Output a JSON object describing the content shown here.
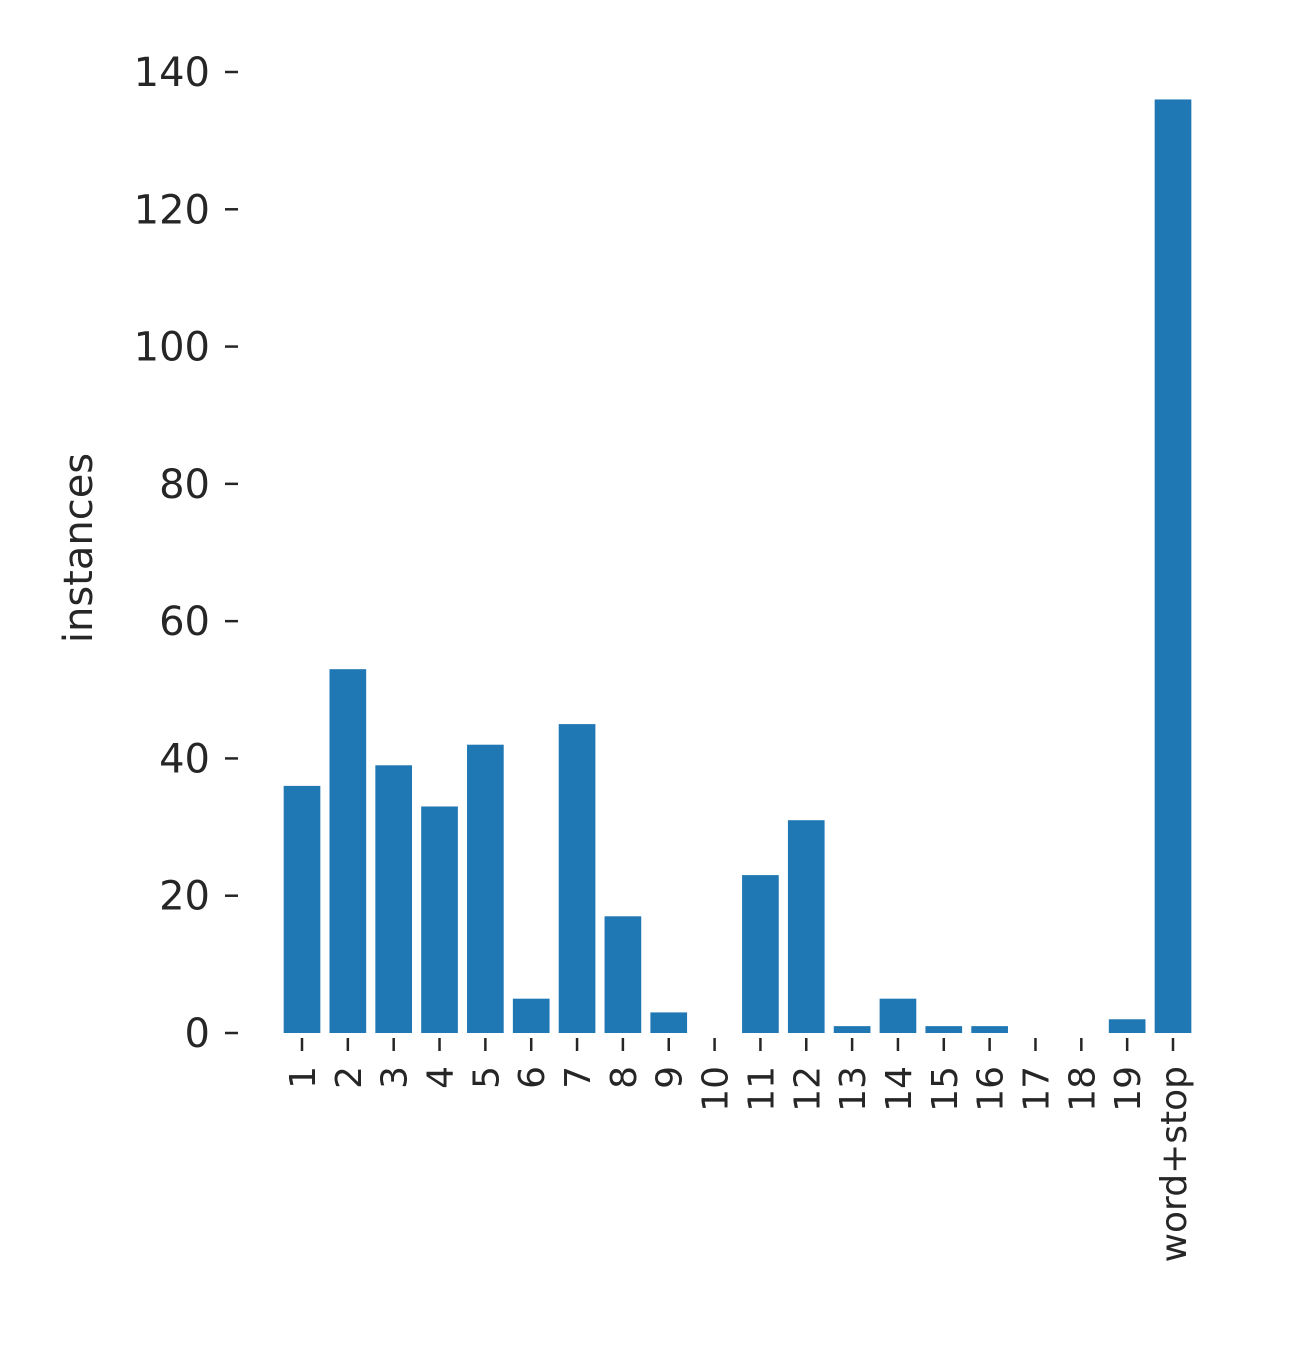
{
  "chart_data": {
    "type": "bar",
    "title": "",
    "xlabel": "",
    "ylabel": "instances",
    "ylim": [
      0,
      140
    ],
    "yticks": [
      0,
      20,
      40,
      60,
      80,
      100,
      120,
      140
    ],
    "ytick_labels": [
      "0",
      "20",
      "40",
      "60",
      "80",
      "100",
      "120",
      "140"
    ],
    "categories": [
      "1",
      "2",
      "3",
      "4",
      "5",
      "6",
      "7",
      "8",
      "9",
      "10",
      "11",
      "12",
      "13",
      "14",
      "15",
      "16",
      "17",
      "18",
      "19",
      "word+stop"
    ],
    "values": [
      36,
      53,
      39,
      33,
      42,
      5,
      45,
      17,
      3,
      0,
      23,
      31,
      1,
      5,
      1,
      1,
      0,
      0,
      2,
      136
    ],
    "bar_color": "#1f77b4",
    "grid": false,
    "legend": "none"
  }
}
